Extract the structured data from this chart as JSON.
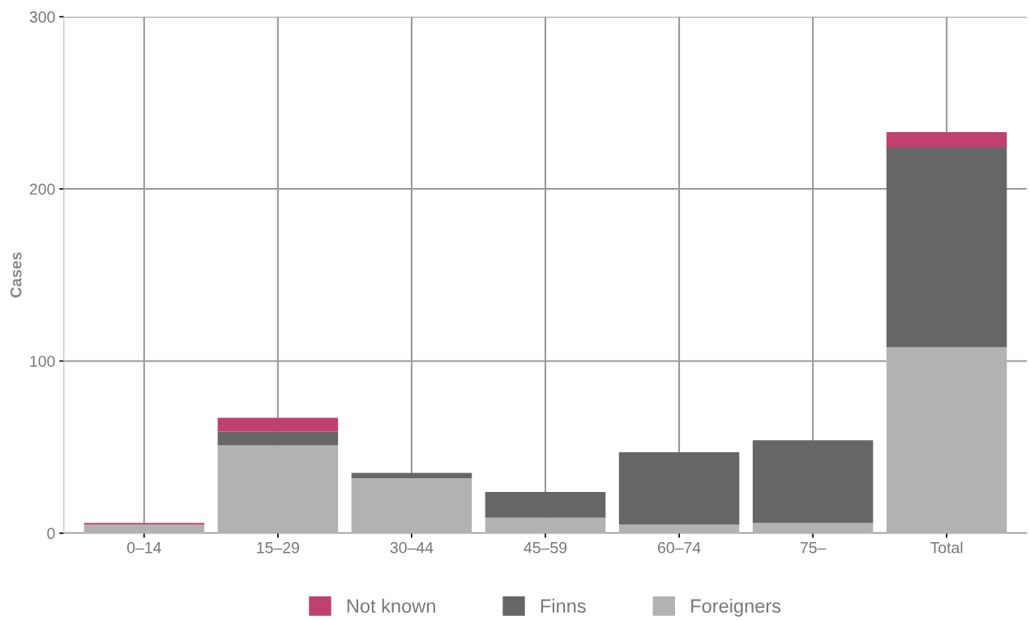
{
  "chart_data": {
    "type": "bar",
    "stacked": true,
    "ylabel": "Cases",
    "categories": [
      "0–14",
      "15–29",
      "30–44",
      "45–59",
      "60–74",
      "75–",
      "Total"
    ],
    "series": [
      {
        "name": "Foreigners",
        "color": "#b2b2b2",
        "values": [
          5,
          51,
          32,
          9,
          5,
          6,
          108
        ]
      },
      {
        "name": "Finns",
        "color": "#666666",
        "values": [
          0,
          8,
          3,
          15,
          42,
          48,
          116
        ]
      },
      {
        "name": "Not known",
        "color": "#c0406f",
        "values": [
          1,
          8,
          0,
          0,
          0,
          0,
          9
        ]
      }
    ],
    "ylim": [
      0,
      300
    ],
    "yticks": [
      0,
      100,
      200,
      300
    ],
    "grid": true,
    "legend": "bottom"
  }
}
